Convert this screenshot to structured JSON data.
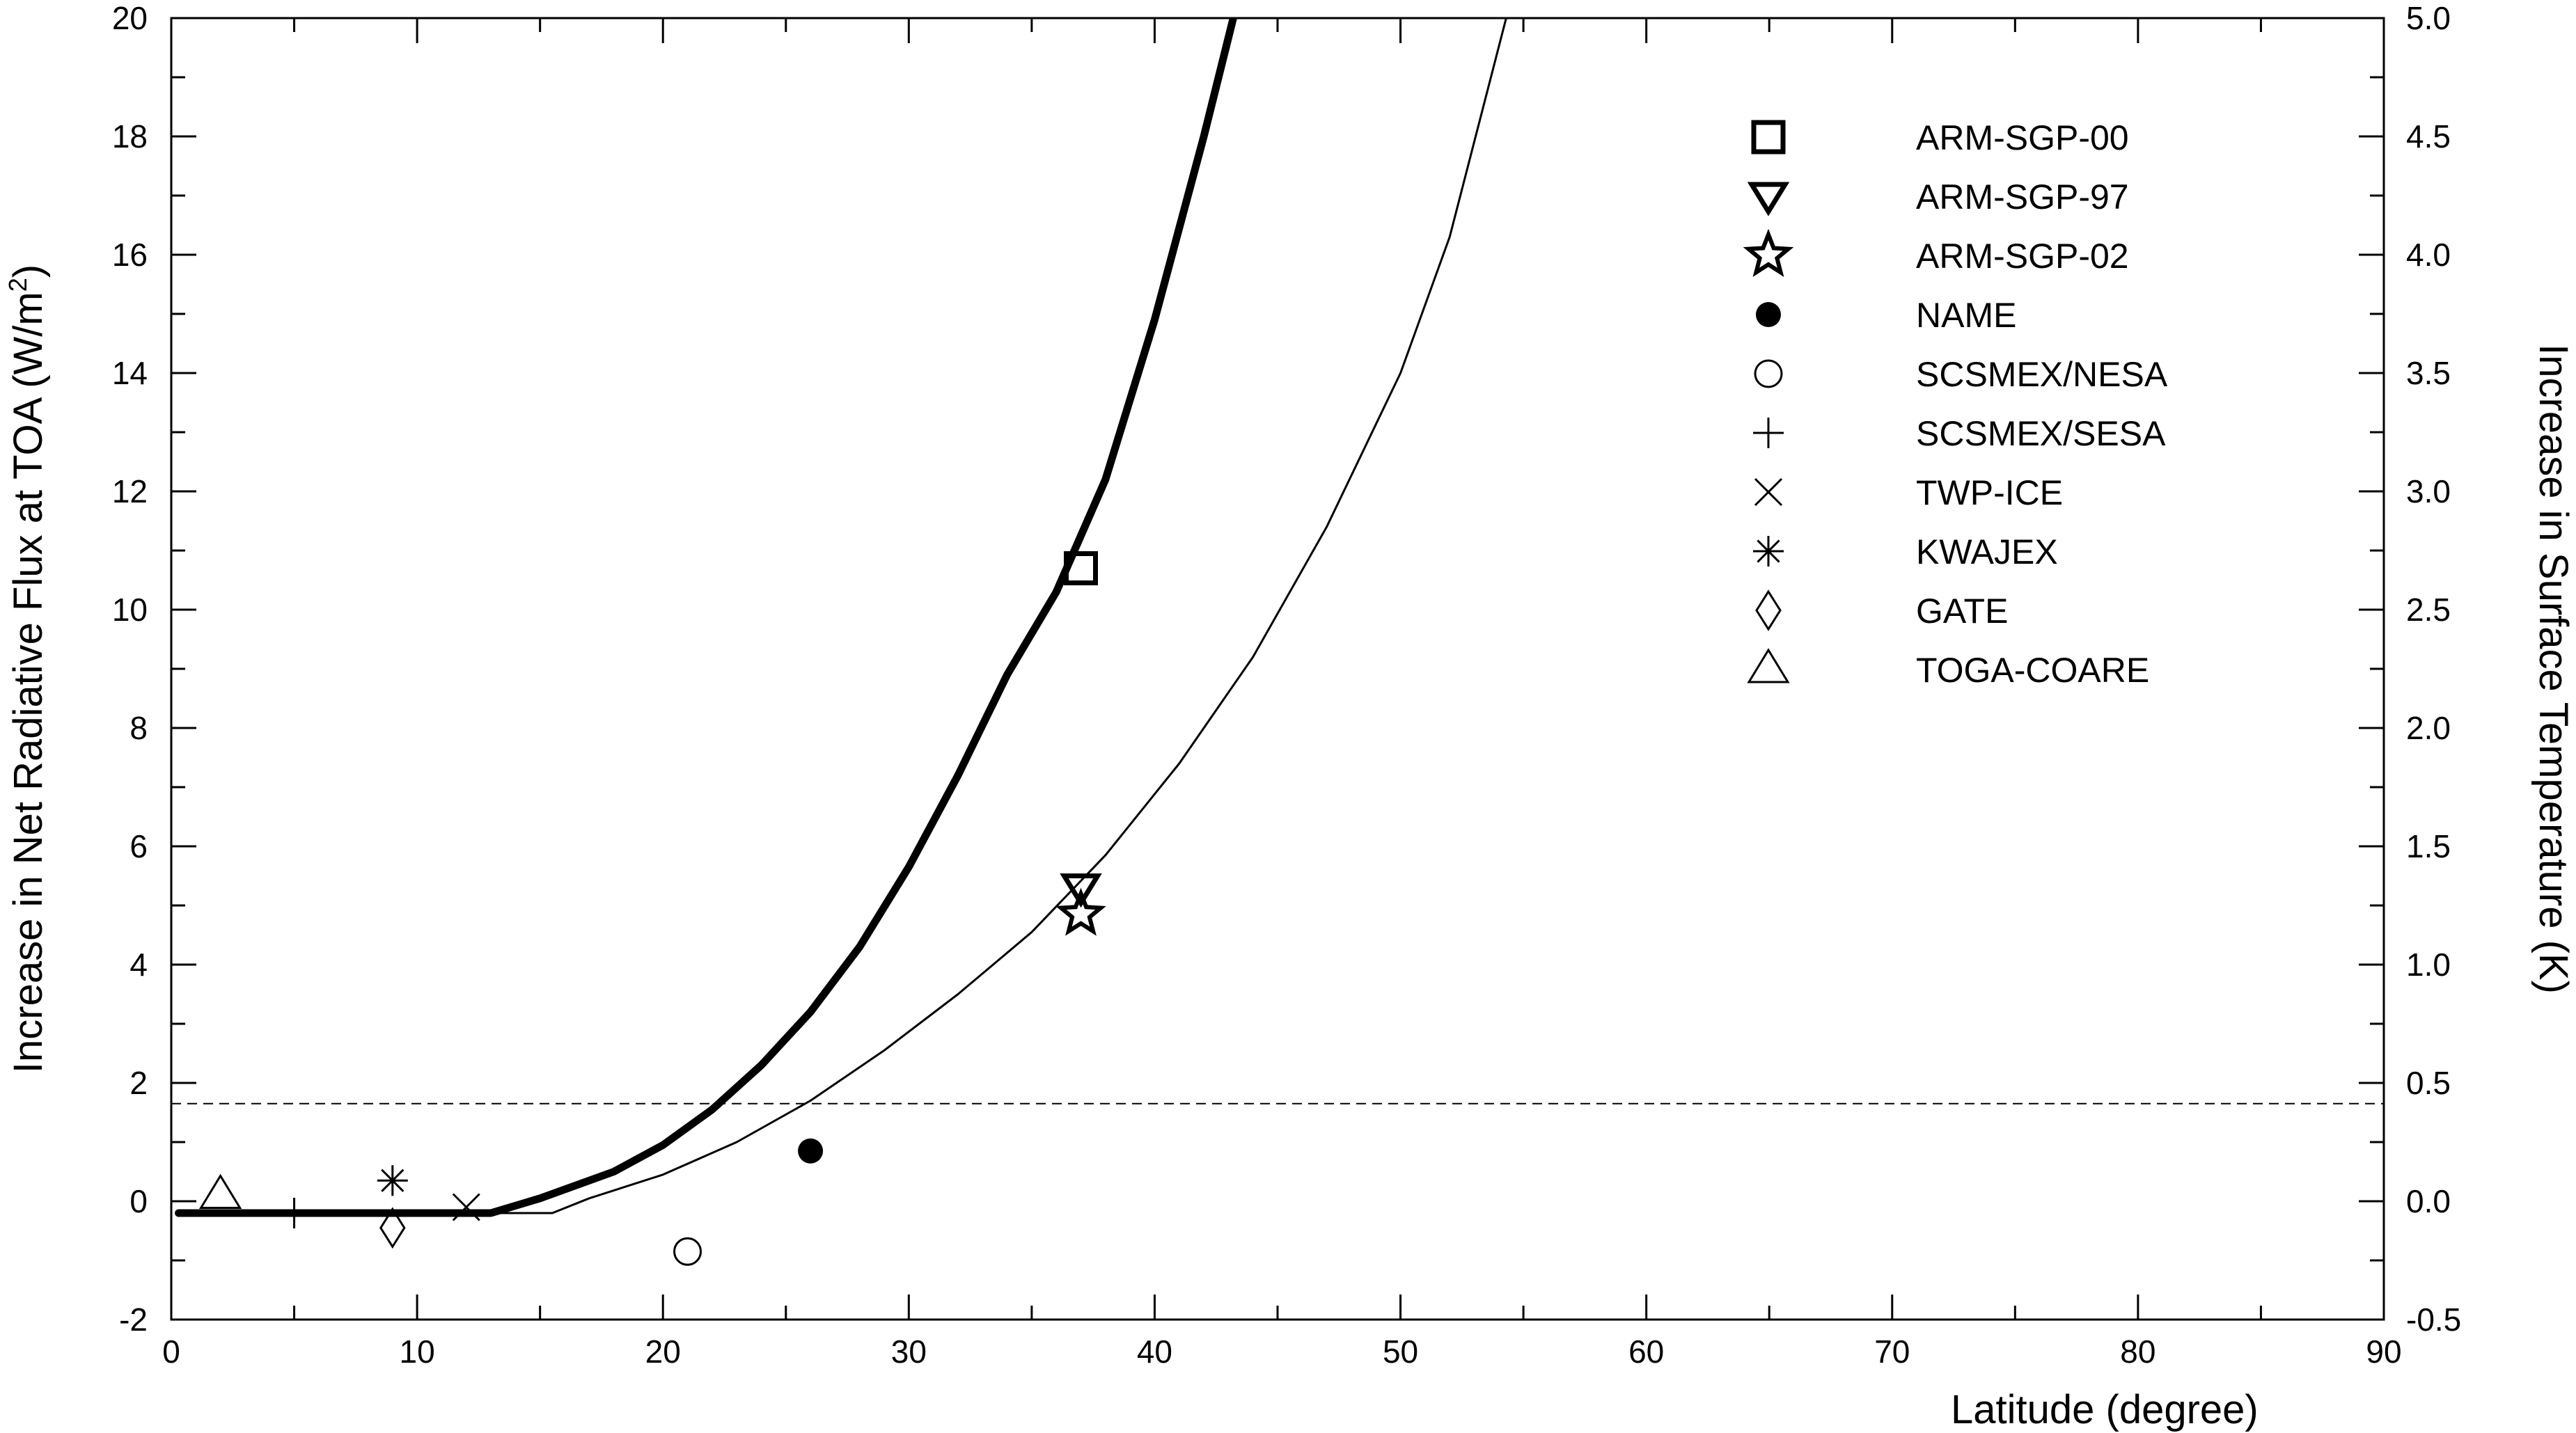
{
  "chart_data": {
    "type": "scatter",
    "xlabel": "Latitude (degree)",
    "ylabel": "Increase in Net Radiative Flux at TOA (W/m",
    "ylabel_sup": "2",
    "ylabel_close": ")",
    "y2label": "Increase in Surface Temperature (K)",
    "xlim": [
      0,
      90
    ],
    "ylim": [
      -2,
      20
    ],
    "y2lim": [
      -0.5,
      5.0
    ],
    "grid": false,
    "legend_position": "top-right",
    "x_ticks": [
      "0",
      "10",
      "20",
      "30",
      "40",
      "50",
      "60",
      "70",
      "80",
      "90"
    ],
    "y_ticks": [
      "-2",
      "0",
      "2",
      "4",
      "6",
      "8",
      "10",
      "12",
      "14",
      "16",
      "18",
      "20"
    ],
    "y2_ticks": [
      "-0.5",
      "0.0",
      "0.5",
      "1.0",
      "1.5",
      "2.0",
      "2.5",
      "3.0",
      "3.5",
      "4.0",
      "4.5",
      "5.0"
    ],
    "reference_line": {
      "y": 1.65,
      "style": "dashed"
    },
    "curves": [
      {
        "style": "thick",
        "points": [
          [
            0.3,
            -0.2
          ],
          [
            13,
            -0.2
          ],
          [
            15,
            0.05
          ],
          [
            18,
            0.5
          ],
          [
            20,
            0.95
          ],
          [
            22,
            1.55
          ],
          [
            24,
            2.3
          ],
          [
            26,
            3.2
          ],
          [
            28,
            4.3
          ],
          [
            30,
            5.65
          ],
          [
            32,
            7.2
          ],
          [
            34,
            8.9
          ],
          [
            36,
            10.3
          ],
          [
            38,
            12.2
          ],
          [
            40,
            14.9
          ],
          [
            42,
            18.0
          ],
          [
            43.2,
            20.0
          ]
        ]
      },
      {
        "style": "thin",
        "points": [
          [
            0.3,
            -0.2
          ],
          [
            15.5,
            -0.2
          ],
          [
            17,
            0.05
          ],
          [
            20,
            0.45
          ],
          [
            23,
            1.0
          ],
          [
            26,
            1.7
          ],
          [
            29,
            2.55
          ],
          [
            32,
            3.5
          ],
          [
            35,
            4.55
          ],
          [
            38,
            5.85
          ],
          [
            41,
            7.4
          ],
          [
            44,
            9.2
          ],
          [
            47,
            11.4
          ],
          [
            50,
            14.0
          ],
          [
            52,
            16.3
          ],
          [
            54.3,
            20.0
          ]
        ]
      }
    ],
    "series": [
      {
        "name": "ARM-SGP-00",
        "marker": "square",
        "points": [
          [
            37,
            10.7
          ]
        ]
      },
      {
        "name": "ARM-SGP-97",
        "marker": "triangle-down",
        "points": [
          [
            37,
            5.3
          ]
        ]
      },
      {
        "name": "ARM-SGP-02",
        "marker": "star",
        "points": [
          [
            37,
            4.85
          ]
        ]
      },
      {
        "name": "NAME",
        "marker": "filled-circle",
        "points": [
          [
            26,
            0.85
          ]
        ]
      },
      {
        "name": "SCSMEX/NESA",
        "marker": "open-circle",
        "points": [
          [
            21,
            -0.85
          ]
        ]
      },
      {
        "name": "SCSMEX/SESA",
        "marker": "plus",
        "points": [
          [
            5,
            -0.2
          ]
        ]
      },
      {
        "name": "TWP-ICE",
        "marker": "x",
        "points": [
          [
            12,
            -0.1
          ]
        ]
      },
      {
        "name": "KWAJEX",
        "marker": "asterisk",
        "points": [
          [
            9,
            0.35
          ]
        ]
      },
      {
        "name": "GATE",
        "marker": "diamond",
        "points": [
          [
            9,
            -0.45
          ]
        ]
      },
      {
        "name": "TOGA-COARE",
        "marker": "triangle-up",
        "points": [
          [
            2,
            0.1
          ]
        ]
      }
    ]
  }
}
